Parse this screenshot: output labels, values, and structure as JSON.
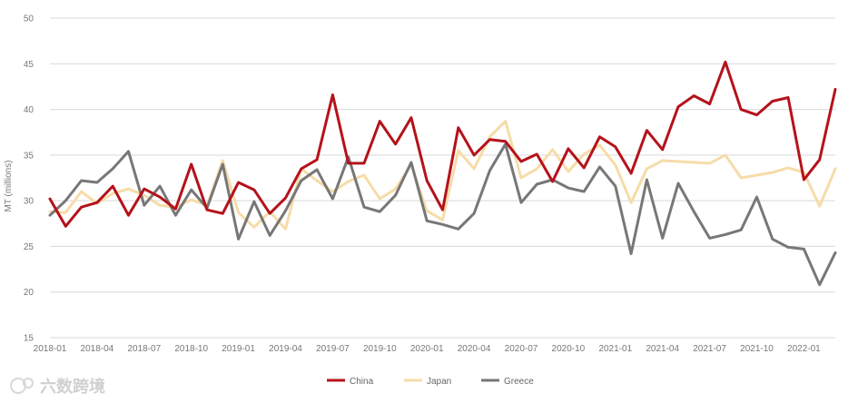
{
  "chart_data": {
    "type": "line",
    "ylabel": "MT (millions)",
    "ylim": [
      15,
      50
    ],
    "yticks": [
      15,
      20,
      25,
      30,
      35,
      40,
      45,
      50
    ],
    "grid": "horizontal",
    "legend_position": "bottom-center",
    "x": [
      "2018-01",
      "2018-02",
      "2018-03",
      "2018-04",
      "2018-05",
      "2018-06",
      "2018-07",
      "2018-08",
      "2018-09",
      "2018-10",
      "2018-11",
      "2018-12",
      "2019-01",
      "2019-02",
      "2019-03",
      "2019-04",
      "2019-05",
      "2019-06",
      "2019-07",
      "2019-08",
      "2019-09",
      "2019-10",
      "2019-11",
      "2019-12",
      "2020-01",
      "2020-02",
      "2020-03",
      "2020-04",
      "2020-05",
      "2020-06",
      "2020-07",
      "2020-08",
      "2020-09",
      "2020-10",
      "2020-11",
      "2020-12",
      "2021-01",
      "2021-02",
      "2021-03",
      "2021-04",
      "2021-05",
      "2021-06",
      "2021-07",
      "2021-08",
      "2021-09",
      "2021-10",
      "2021-11",
      "2021-12",
      "2022-01",
      "2022-02",
      "2022-03"
    ],
    "xtick_labels": [
      "2018-01",
      "2018-04",
      "2018-07",
      "2018-10",
      "2019-01",
      "2019-04",
      "2019-07",
      "2019-10",
      "2020-01",
      "2020-04",
      "2020-07",
      "2020-10",
      "2021-01",
      "2021-04",
      "2021-07",
      "2021-10",
      "2022-01"
    ],
    "series": [
      {
        "name": "China",
        "color": "#b5121b",
        "values": [
          30.2,
          27.2,
          29.3,
          29.8,
          31.6,
          28.4,
          31.3,
          30.4,
          29.1,
          34.0,
          29.0,
          28.6,
          32.0,
          31.2,
          28.6,
          30.3,
          33.5,
          34.5,
          41.6,
          34.1,
          34.1,
          38.7,
          36.2,
          39.1,
          32.2,
          29.0,
          38.0,
          35.0,
          36.7,
          36.5,
          34.3,
          35.1,
          32.1,
          35.7,
          33.6,
          37.0,
          35.9,
          33.0,
          37.7,
          35.6,
          40.3,
          41.5,
          40.6,
          45.2,
          40.0,
          39.4,
          40.9,
          41.3,
          32.3,
          34.5,
          42.2
        ]
      },
      {
        "name": "Japan",
        "color": "#f6dca8",
        "values": [
          28.8,
          28.7,
          31.0,
          29.7,
          30.8,
          31.3,
          30.6,
          29.5,
          29.3,
          30.1,
          29.5,
          34.4,
          28.7,
          27.1,
          28.8,
          26.9,
          33.5,
          32.2,
          31.0,
          32.1,
          32.8,
          30.2,
          31.3,
          33.9,
          28.9,
          27.9,
          35.5,
          33.5,
          37.0,
          38.7,
          32.5,
          33.5,
          35.6,
          33.2,
          35.1,
          36.1,
          33.9,
          29.8,
          33.5,
          34.4,
          34.3,
          34.2,
          34.1,
          35.0,
          32.5,
          32.8,
          33.1,
          33.6,
          33.1,
          29.4,
          33.5
        ]
      },
      {
        "name": "Greece",
        "color": "#777777",
        "values": [
          28.4,
          30.0,
          32.2,
          32.0,
          33.5,
          35.4,
          29.5,
          31.6,
          28.4,
          31.2,
          29.2,
          34.0,
          25.8,
          29.9,
          26.2,
          28.9,
          32.2,
          33.4,
          30.2,
          34.8,
          29.3,
          28.8,
          30.6,
          34.2,
          27.8,
          27.4,
          26.9,
          28.6,
          33.3,
          36.2,
          29.8,
          31.8,
          32.3,
          31.4,
          31.0,
          33.7,
          31.6,
          24.2,
          32.3,
          25.9,
          31.9,
          28.8,
          25.9,
          26.3,
          26.8,
          30.4,
          25.8,
          24.9,
          24.7,
          20.8,
          24.3
        ]
      }
    ]
  },
  "watermark": {
    "text": "六数跨境",
    "icon": "logo-mark-icon"
  }
}
